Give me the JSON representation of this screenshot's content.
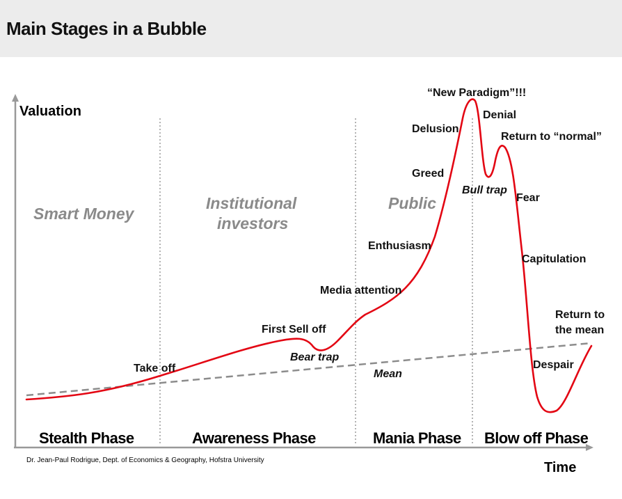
{
  "title": "Main Stages in a Bubble",
  "axes": {
    "y_label": "Valuation",
    "x_label": "Time"
  },
  "zones": {
    "smart_money": "Smart Money",
    "institutional_1": "Institutional",
    "institutional_2": "investors",
    "public": "Public"
  },
  "phases": {
    "stealth": "Stealth Phase",
    "awareness": "Awareness Phase",
    "mania": "Mania Phase",
    "blow_off": "Blow off Phase"
  },
  "stages": {
    "take_off": "Take off",
    "first_sell_off": "First Sell off",
    "bear_trap": "Bear trap",
    "media_attention": "Media attention",
    "enthusiasm": "Enthusiasm",
    "greed": "Greed",
    "delusion": "Delusion",
    "new_paradigm": "“New Paradigm”!!!",
    "denial": "Denial",
    "bull_trap": "Bull trap",
    "return_to_normal": "Return to “normal”",
    "fear": "Fear",
    "capitulation": "Capitulation",
    "despair": "Despair",
    "return_to_mean_1": "Return to",
    "return_to_mean_2": "the mean",
    "mean": "Mean"
  },
  "credit": "Dr. Jean-Paul Rodrigue, Dept. of Economics & Geography, Hofstra University",
  "colors": {
    "curve": "#e30613",
    "mean_line": "#8c8c8c",
    "divider": "#9a9a9a",
    "axis": "#999999"
  }
}
